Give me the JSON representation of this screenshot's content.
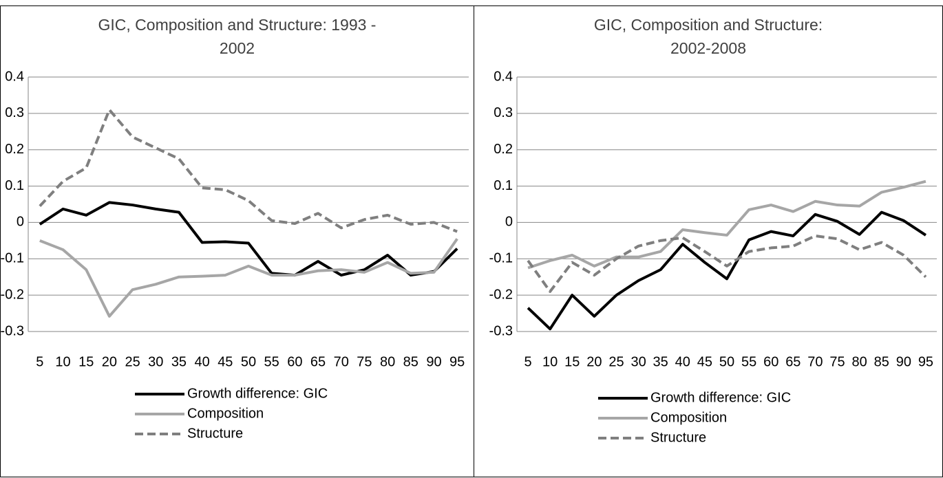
{
  "chart_data": [
    {
      "type": "line",
      "title": "GIC, Composition and Structure: 1993 - 2002",
      "categories": [
        5,
        10,
        15,
        20,
        25,
        30,
        35,
        40,
        45,
        50,
        55,
        60,
        65,
        70,
        75,
        80,
        85,
        90,
        95
      ],
      "ylim": [
        -0.3,
        0.4
      ],
      "yticks": [
        -0.3,
        -0.2,
        -0.1,
        0,
        0.1,
        0.2,
        0.3,
        0.4
      ],
      "grid": true,
      "series": [
        {
          "name": "Growth difference: GIC",
          "color": "#000000",
          "dashed": false,
          "values": [
            -0.005,
            0.037,
            0.02,
            0.055,
            0.048,
            0.037,
            0.028,
            -0.055,
            -0.053,
            -0.057,
            -0.14,
            -0.145,
            -0.107,
            -0.145,
            -0.13,
            -0.09,
            -0.145,
            -0.135,
            -0.072
          ]
        },
        {
          "name": "Composition",
          "color": "#a6a6a6",
          "dashed": false,
          "values": [
            -0.05,
            -0.075,
            -0.13,
            -0.258,
            -0.185,
            -0.17,
            -0.15,
            -0.148,
            -0.145,
            -0.12,
            -0.145,
            -0.145,
            -0.133,
            -0.13,
            -0.137,
            -0.11,
            -0.14,
            -0.137,
            -0.045
          ]
        },
        {
          "name": "Structure",
          "color": "#7f7f7f",
          "dashed": true,
          "values": [
            0.045,
            0.113,
            0.15,
            0.31,
            0.235,
            0.205,
            0.175,
            0.095,
            0.09,
            0.06,
            0.005,
            -0.003,
            0.025,
            -0.015,
            0.008,
            0.02,
            -0.005,
            0.0,
            -0.025
          ]
        }
      ]
    },
    {
      "type": "line",
      "title": "GIC, Composition and Structure: 2002-2008",
      "categories": [
        5,
        10,
        15,
        20,
        25,
        30,
        35,
        40,
        45,
        50,
        55,
        60,
        65,
        70,
        75,
        80,
        85,
        90,
        95
      ],
      "ylim": [
        -0.3,
        0.4
      ],
      "yticks": [
        -0.3,
        -0.2,
        -0.1,
        0,
        0.1,
        0.2,
        0.3,
        0.4
      ],
      "grid": true,
      "series": [
        {
          "name": "Growth difference: GIC",
          "color": "#000000",
          "dashed": false,
          "values": [
            -0.235,
            -0.293,
            -0.2,
            -0.258,
            -0.2,
            -0.16,
            -0.13,
            -0.06,
            -0.11,
            -0.155,
            -0.048,
            -0.025,
            -0.037,
            0.022,
            0.003,
            -0.033,
            0.028,
            0.005,
            -0.035
          ]
        },
        {
          "name": "Composition",
          "color": "#a6a6a6",
          "dashed": false,
          "values": [
            -0.125,
            -0.105,
            -0.09,
            -0.12,
            -0.095,
            -0.095,
            -0.08,
            -0.02,
            -0.028,
            -0.035,
            0.035,
            0.048,
            0.03,
            0.058,
            0.048,
            0.045,
            0.083,
            0.097,
            0.113
          ]
        },
        {
          "name": "Structure",
          "color": "#7f7f7f",
          "dashed": true,
          "values": [
            -0.105,
            -0.19,
            -0.11,
            -0.145,
            -0.1,
            -0.065,
            -0.05,
            -0.042,
            -0.08,
            -0.12,
            -0.08,
            -0.07,
            -0.065,
            -0.037,
            -0.045,
            -0.075,
            -0.055,
            -0.09,
            -0.15
          ]
        }
      ]
    }
  ]
}
